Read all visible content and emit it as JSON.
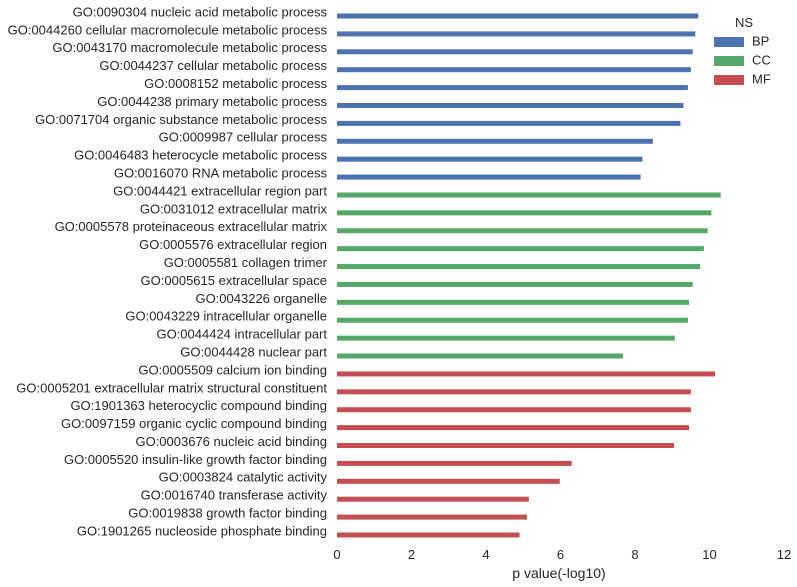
{
  "chart_data": {
    "type": "bar",
    "orientation": "horizontal",
    "xlabel": "p value(-log10)",
    "xlim": [
      0,
      12
    ],
    "xticks": [
      0,
      2,
      4,
      6,
      8,
      10,
      12
    ],
    "grid": false,
    "legend": {
      "title": "NS",
      "placement": "top-right",
      "entries": [
        {
          "name": "BP",
          "color": "#4c72b0"
        },
        {
          "name": "CC",
          "color": "#55a868"
        },
        {
          "name": "MF",
          "color": "#c44e52"
        }
      ]
    },
    "bars": [
      {
        "label": "GO:0090304 nucleic acid metabolic process",
        "value": 9.7,
        "ns": "BP"
      },
      {
        "label": "GO:0044260 cellular macromolecule metabolic process",
        "value": 9.62,
        "ns": "BP"
      },
      {
        "label": "GO:0043170 macromolecule metabolic process",
        "value": 9.55,
        "ns": "BP"
      },
      {
        "label": "GO:0044237 cellular metabolic process",
        "value": 9.5,
        "ns": "BP"
      },
      {
        "label": "GO:0008152 metabolic process",
        "value": 9.42,
        "ns": "BP"
      },
      {
        "label": "GO:0044238 primary metabolic process",
        "value": 9.3,
        "ns": "BP"
      },
      {
        "label": "GO:0071704 organic substance metabolic process",
        "value": 9.22,
        "ns": "BP"
      },
      {
        "label": "GO:0009987 cellular process",
        "value": 8.48,
        "ns": "BP"
      },
      {
        "label": "GO:0046483 heterocycle metabolic process",
        "value": 8.2,
        "ns": "BP"
      },
      {
        "label": "GO:0016070 RNA metabolic process",
        "value": 8.15,
        "ns": "BP"
      },
      {
        "label": "GO:0044421 extracellular region part",
        "value": 10.3,
        "ns": "CC"
      },
      {
        "label": "GO:0031012 extracellular matrix",
        "value": 10.05,
        "ns": "CC"
      },
      {
        "label": "GO:0005578 proteinaceous extracellular matrix",
        "value": 9.95,
        "ns": "CC"
      },
      {
        "label": "GO:0005576 extracellular region",
        "value": 9.85,
        "ns": "CC"
      },
      {
        "label": "GO:0005581 collagen trimer",
        "value": 9.75,
        "ns": "CC"
      },
      {
        "label": "GO:0005615 extracellular space",
        "value": 9.55,
        "ns": "CC"
      },
      {
        "label": "GO:0043226 organelle",
        "value": 9.45,
        "ns": "CC"
      },
      {
        "label": "GO:0043229 intracellular organelle",
        "value": 9.42,
        "ns": "CC"
      },
      {
        "label": "GO:0044424 intracellular part",
        "value": 9.07,
        "ns": "CC"
      },
      {
        "label": "GO:0044428 nuclear part",
        "value": 7.68,
        "ns": "CC"
      },
      {
        "label": "GO:0005509 calcium ion binding",
        "value": 10.15,
        "ns": "MF"
      },
      {
        "label": "GO:0005201 extracellular matrix structural constituent",
        "value": 9.5,
        "ns": "MF"
      },
      {
        "label": "GO:1901363 heterocyclic compound binding",
        "value": 9.5,
        "ns": "MF"
      },
      {
        "label": "GO:0097159 organic cyclic compound binding",
        "value": 9.45,
        "ns": "MF"
      },
      {
        "label": "GO:0003676 nucleic acid binding",
        "value": 9.05,
        "ns": "MF"
      },
      {
        "label": "GO:0005520 insulin-like growth factor binding",
        "value": 6.3,
        "ns": "MF"
      },
      {
        "label": "GO:0003824 catalytic activity",
        "value": 5.98,
        "ns": "MF"
      },
      {
        "label": "GO:0016740 transferase activity",
        "value": 5.15,
        "ns": "MF"
      },
      {
        "label": "GO:0019838 growth factor binding",
        "value": 5.1,
        "ns": "MF"
      },
      {
        "label": "GO:1901265 nucleoside phosphate binding",
        "value": 4.9,
        "ns": "MF"
      }
    ]
  }
}
